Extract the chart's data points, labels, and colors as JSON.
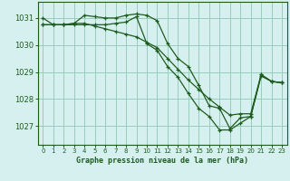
{
  "title": "Graphe pression niveau de la mer (hPa)",
  "background_color": "#d6f0f0",
  "grid_color": "#99ccbb",
  "line_color": "#1e5c1e",
  "xlim": [
    -0.5,
    23.5
  ],
  "ylim": [
    1026.3,
    1031.6
  ],
  "yticks": [
    1027,
    1028,
    1029,
    1030,
    1031
  ],
  "xticks": [
    0,
    1,
    2,
    3,
    4,
    5,
    6,
    7,
    8,
    9,
    10,
    11,
    12,
    13,
    14,
    15,
    16,
    17,
    18,
    19,
    20,
    21,
    22,
    23
  ],
  "series": [
    [
      1031.0,
      1030.75,
      1030.75,
      1030.75,
      1030.75,
      1030.75,
      1030.75,
      1030.8,
      1030.85,
      1031.05,
      1030.05,
      1029.8,
      1029.2,
      1028.8,
      1028.2,
      1027.65,
      1027.35,
      1026.85,
      1026.85,
      1027.1,
      1027.35,
      1028.85,
      1028.65,
      1028.6
    ],
    [
      1030.75,
      1030.75,
      1030.75,
      1030.8,
      1031.1,
      1031.05,
      1031.0,
      1031.0,
      1031.1,
      1031.15,
      1031.1,
      1030.9,
      1030.05,
      1029.5,
      1029.2,
      1028.5,
      1027.75,
      1027.65,
      1026.9,
      1027.3,
      1027.35,
      1028.9,
      1028.65,
      1028.6
    ],
    [
      1030.75,
      1030.75,
      1030.75,
      1030.8,
      1030.8,
      1030.7,
      1030.6,
      1030.5,
      1030.4,
      1030.3,
      1030.1,
      1029.9,
      1029.5,
      1029.1,
      1028.7,
      1028.35,
      1028.0,
      1027.7,
      1027.4,
      1027.45,
      1027.45,
      1028.9,
      1028.65,
      1028.6
    ]
  ]
}
